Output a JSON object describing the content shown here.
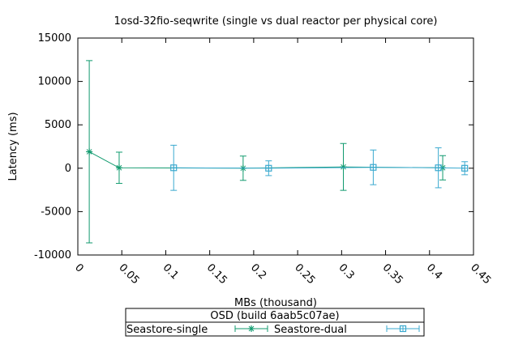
{
  "chart_data": {
    "type": "scatter",
    "title": "1osd-32fio-seqwrite (single vs dual reactor per physical core)",
    "xlabel": "MBs (thousand)",
    "ylabel": "Latency (ms)",
    "xlim": [
      0,
      0.45
    ],
    "ylim": [
      -10000,
      15000
    ],
    "x_ticks": [
      0,
      0.05,
      0.1,
      0.15,
      0.2,
      0.25,
      0.3,
      0.35,
      0.4,
      0.45
    ],
    "y_ticks": [
      -10000,
      -5000,
      0,
      5000,
      10000,
      15000
    ],
    "grid": false,
    "legend_title": "OSD (build 6aab5c07ae)",
    "legend_position": "bottom-center",
    "series": [
      {
        "name": "Seastore-single",
        "color": "#109a6e",
        "marker": "plus",
        "points": [
          {
            "x": 0.013,
            "y": 1900,
            "err": 10500
          },
          {
            "x": 0.047,
            "y": 50,
            "err": 1800
          },
          {
            "x": 0.188,
            "y": 0,
            "err": 1400
          },
          {
            "x": 0.302,
            "y": 150,
            "err": 2700
          },
          {
            "x": 0.415,
            "y": 50,
            "err": 1400
          }
        ]
      },
      {
        "name": "Seastore-dual",
        "color": "#3aa9cf",
        "marker": "star-box",
        "points": [
          {
            "x": 0.109,
            "y": 50,
            "err": 2600
          },
          {
            "x": 0.217,
            "y": 0,
            "err": 850
          },
          {
            "x": 0.336,
            "y": 100,
            "err": 2000
          },
          {
            "x": 0.41,
            "y": 50,
            "err": 2300
          },
          {
            "x": 0.44,
            "y": 0,
            "err": 750
          }
        ]
      }
    ]
  }
}
